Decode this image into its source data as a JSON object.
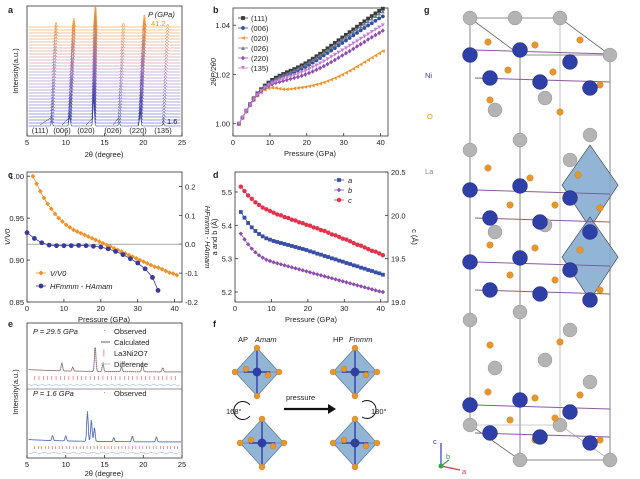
{
  "chart_data": [
    {
      "panel": "a",
      "type": "line",
      "ylabel": "Intensity(a.u.)",
      "xlabel": "2θ (degree)",
      "xlim": [
        5,
        25
      ],
      "xticks": [
        5,
        10,
        15,
        20,
        25
      ],
      "pressure_label": "P (GPa)",
      "top_pressure": "41.2",
      "bottom_pressure": "1.6",
      "peak_labels": [
        "(111)",
        "(006)",
        "(020)",
        "(026)",
        "(220)",
        "(135)"
      ],
      "peak_positions": [
        8.2,
        10.5,
        13.6,
        16.9,
        19.6,
        22.6
      ]
    },
    {
      "panel": "b",
      "type": "scatter",
      "ylabel": "2θP/2θ0",
      "xlabel": "Pressure (GPa)",
      "xlim": [
        0,
        42
      ],
      "ylim": [
        0.995,
        1.047
      ],
      "xticks": [
        0,
        10,
        20,
        30,
        40
      ],
      "yticks": [
        1.0,
        1.02,
        1.04
      ],
      "x": [
        1.6,
        2.6,
        3.6,
        4.6,
        5.6,
        6.6,
        7.6,
        8.6,
        9.6,
        10.6,
        11.6,
        12.6,
        13.6,
        14.6,
        15.6,
        16.6,
        17.6,
        18.6,
        19.6,
        20.6,
        21.6,
        22.6,
        23.6,
        24.6,
        25.6,
        26.6,
        27.6,
        28.6,
        29.6,
        30.6,
        31.6,
        32.6,
        33.6,
        34.6,
        35.6,
        36.6,
        37.6,
        38.6,
        39.6,
        40.6
      ],
      "series": [
        {
          "name": "(111)",
          "color": "#3a3a3a",
          "values": [
            1.0,
            1.0025,
            1.0053,
            1.0079,
            1.0103,
            1.0123,
            1.014,
            1.0155,
            1.0167,
            1.0178,
            1.0187,
            1.0195,
            1.0202,
            1.0209,
            1.0215,
            1.0222,
            1.0229,
            1.0237,
            1.0245,
            1.0254,
            1.0264,
            1.0274,
            1.0284,
            1.0295,
            1.0306,
            1.0317,
            1.0328,
            1.0339,
            1.035,
            1.0361,
            1.0372,
            1.0383,
            1.0394,
            1.0405,
            1.0416,
            1.0427,
            1.0437,
            1.0448,
            1.0458,
            1.0467
          ]
        },
        {
          "name": "(006)",
          "color": "#2f4fa0",
          "values": [
            1.0,
            1.0024,
            1.0051,
            1.0076,
            1.0099,
            1.0119,
            1.0135,
            1.0149,
            1.016,
            1.017,
            1.0178,
            1.0185,
            1.0192,
            1.0198,
            1.0204,
            1.021,
            1.0217,
            1.0224,
            1.0231,
            1.0239,
            1.0248,
            1.0257,
            1.0267,
            1.0277,
            1.0287,
            1.0297,
            1.0307,
            1.0318,
            1.0328,
            1.0338,
            1.0348,
            1.0359,
            1.0369,
            1.0379,
            1.0389,
            1.0399,
            1.0408,
            1.0418,
            1.0428,
            1.0436
          ]
        },
        {
          "name": "(020)",
          "color": "#f0922b",
          "values": [
            1.0,
            1.0024,
            1.005,
            1.0074,
            1.0096,
            1.0114,
            1.0128,
            1.0138,
            1.0144,
            1.0146,
            1.0145,
            1.0142,
            1.014,
            1.014,
            1.0141,
            1.0143,
            1.0145,
            1.0147,
            1.0149,
            1.0152,
            1.0155,
            1.0159,
            1.0163,
            1.0168,
            1.0173,
            1.0179,
            1.0185,
            1.0192,
            1.0199,
            1.0207,
            1.0215,
            1.0223,
            1.0232,
            1.0241,
            1.025,
            1.0259,
            1.0268,
            1.0277,
            1.0286,
            1.0295
          ]
        },
        {
          "name": "(026)",
          "color": "#6b7a8f",
          "values": [
            1.0,
            1.0025,
            1.0052,
            1.0078,
            1.0101,
            1.0121,
            1.0138,
            1.0152,
            1.0163,
            1.0173,
            1.0182,
            1.019,
            1.0197,
            1.0203,
            1.021,
            1.0217,
            1.0224,
            1.0232,
            1.024,
            1.0249,
            1.0258,
            1.0268,
            1.0278,
            1.0289,
            1.0299,
            1.031,
            1.032,
            1.0331,
            1.0342,
            1.0353,
            1.0363,
            1.0374,
            1.0385,
            1.0395,
            1.0406,
            1.0416,
            1.0427,
            1.0437,
            1.0447,
            1.0456
          ]
        },
        {
          "name": "(220)",
          "color": "#8e4bb0",
          "values": [
            1.0,
            1.0024,
            1.005,
            1.0075,
            1.0097,
            1.0116,
            1.0131,
            1.0143,
            1.0153,
            1.016,
            1.0166,
            1.017,
            1.0174,
            1.0178,
            1.0182,
            1.0186,
            1.019,
            1.0195,
            1.02,
            1.0206,
            1.0212,
            1.0219,
            1.0226,
            1.0234,
            1.0242,
            1.025,
            1.0259,
            1.0268,
            1.0277,
            1.0286,
            1.0295,
            1.0304,
            1.0314,
            1.0323,
            1.0332,
            1.0342,
            1.0351,
            1.036,
            1.0369,
            1.0378
          ]
        },
        {
          "name": "(135)",
          "color": "#c87ad2",
          "values": [
            1.0,
            1.0024,
            1.0051,
            1.0076,
            1.0099,
            1.0118,
            1.0133,
            1.0146,
            1.0156,
            1.0164,
            1.0171,
            1.0177,
            1.0182,
            1.0187,
            1.0192,
            1.0197,
            1.0203,
            1.0209,
            1.0215,
            1.0222,
            1.0229,
            1.0237,
            1.0245,
            1.0253,
            1.0262,
            1.0271,
            1.028,
            1.0289,
            1.0298,
            1.0307,
            1.0317,
            1.0326,
            1.0335,
            1.0345,
            1.0354,
            1.0363,
            1.0373,
            1.0382,
            1.0391,
            1.04
          ]
        }
      ]
    },
    {
      "panel": "c",
      "type": "scatter",
      "ylabel": "V/V0",
      "y2label": "HFmmm - HAmam",
      "xlabel": "Pressure (GPa)",
      "xlim": [
        0,
        42
      ],
      "ylim": [
        0.85,
        1.005
      ],
      "y2lim": [
        -0.2,
        0.25
      ],
      "xticks": [
        0,
        10,
        20,
        30,
        40
      ],
      "yticks": [
        0.85,
        0.9,
        0.95,
        1.0
      ],
      "y2ticks": [
        -0.2,
        -0.1,
        0.0,
        0.1,
        0.2
      ],
      "series": [
        {
          "name": "V/V0",
          "color": "#f0922b",
          "x": [
            1.6,
            2.6,
            3.6,
            4.6,
            5.6,
            6.6,
            7.6,
            8.6,
            9.6,
            10.6,
            11.6,
            12.6,
            13.6,
            14.6,
            15.6,
            16.6,
            17.6,
            18.6,
            19.6,
            20.6,
            21.6,
            22.6,
            23.6,
            24.6,
            25.6,
            26.6,
            27.6,
            28.6,
            29.6,
            30.6,
            31.6,
            32.6,
            33.6,
            34.6,
            35.6,
            36.6,
            37.6,
            38.6,
            39.6,
            40.6
          ],
          "values": [
            1.0,
            0.991,
            0.982,
            0.974,
            0.967,
            0.961,
            0.955,
            0.95,
            0.946,
            0.942,
            0.939,
            0.936,
            0.934,
            0.932,
            0.93,
            0.928,
            0.926,
            0.924,
            0.922,
            0.92,
            0.918,
            0.916,
            0.914,
            0.912,
            0.91,
            0.908,
            0.906,
            0.904,
            0.902,
            0.9,
            0.898,
            0.896,
            0.894,
            0.892,
            0.891,
            0.889,
            0.887,
            0.885,
            0.884,
            0.882
          ]
        },
        {
          "name": "HFmmm - HAmam",
          "color": "#3a3a9a",
          "axis": "right",
          "x": [
            0,
            2,
            4,
            6,
            8,
            10,
            12,
            14,
            16,
            18,
            20,
            22,
            24,
            26,
            28,
            30,
            32,
            34,
            35.5
          ],
          "values": [
            0.04,
            0.02,
            0.005,
            -0.003,
            -0.005,
            -0.005,
            -0.005,
            -0.004,
            -0.005,
            -0.007,
            -0.01,
            -0.016,
            -0.025,
            -0.036,
            -0.05,
            -0.065,
            -0.085,
            -0.115,
            -0.16
          ]
        }
      ]
    },
    {
      "panel": "d",
      "type": "scatter",
      "ylabel": "a and b (Å)",
      "y2label": "c (Å)",
      "xlabel": "Pressure (GPa)",
      "xlim": [
        0,
        42
      ],
      "ylim": [
        5.17,
        5.56
      ],
      "y2lim": [
        19.0,
        20.5
      ],
      "xticks": [
        0,
        10,
        20,
        30,
        40
      ],
      "yticks": [
        5.2,
        5.3,
        5.4,
        5.5
      ],
      "y2ticks": [
        19.0,
        19.5,
        20.0,
        20.5
      ],
      "x": [
        1.6,
        2.6,
        3.6,
        4.6,
        5.6,
        6.6,
        7.6,
        8.6,
        9.6,
        10.6,
        11.6,
        12.6,
        13.6,
        14.6,
        15.6,
        16.6,
        17.6,
        18.6,
        19.6,
        20.6,
        21.6,
        22.6,
        23.6,
        24.6,
        25.6,
        26.6,
        27.6,
        28.6,
        29.6,
        30.6,
        31.6,
        32.6,
        33.6,
        34.6,
        35.6,
        36.6,
        37.6,
        38.6,
        39.6,
        40.6
      ],
      "series": [
        {
          "name": "a",
          "color": "#3a4fa8",
          "values": [
            5.44,
            5.423,
            5.407,
            5.394,
            5.383,
            5.374,
            5.367,
            5.361,
            5.357,
            5.353,
            5.35,
            5.347,
            5.344,
            5.341,
            5.338,
            5.335,
            5.332,
            5.329,
            5.326,
            5.322,
            5.319,
            5.315,
            5.312,
            5.308,
            5.305,
            5.301,
            5.298,
            5.294,
            5.291,
            5.287,
            5.284,
            5.28,
            5.277,
            5.273,
            5.27,
            5.266,
            5.263,
            5.259,
            5.256,
            5.252
          ]
        },
        {
          "name": "b",
          "color": "#8e4bb0",
          "values": [
            5.375,
            5.358,
            5.343,
            5.33,
            5.319,
            5.31,
            5.303,
            5.297,
            5.293,
            5.289,
            5.286,
            5.283,
            5.28,
            5.277,
            5.274,
            5.271,
            5.268,
            5.265,
            5.262,
            5.259,
            5.256,
            5.253,
            5.25,
            5.247,
            5.244,
            5.241,
            5.238,
            5.235,
            5.232,
            5.229,
            5.226,
            5.223,
            5.22,
            5.217,
            5.214,
            5.211,
            5.208,
            5.205,
            5.202,
            5.2
          ]
        },
        {
          "name": "c",
          "color": "#e2334a",
          "axis": "right",
          "values": [
            20.33,
            20.28,
            20.23,
            20.19,
            20.15,
            20.12,
            20.09,
            20.07,
            20.05,
            20.03,
            20.01,
            20.0,
            19.98,
            19.97,
            19.95,
            19.94,
            19.92,
            19.91,
            19.89,
            19.88,
            19.86,
            19.85,
            19.83,
            19.82,
            19.8,
            19.78,
            19.77,
            19.75,
            19.73,
            19.72,
            19.7,
            19.68,
            19.66,
            19.65,
            19.63,
            19.61,
            19.59,
            19.58,
            19.56,
            19.54
          ]
        }
      ]
    },
    {
      "panel": "e",
      "type": "line",
      "ylabel": "Intensity(a.u.)",
      "xlabel": "2θ (degree)",
      "xlim": [
        5,
        25
      ],
      "xticks": [
        5,
        10,
        15,
        20,
        25
      ],
      "top_label": "P = 29.5 GPa",
      "bottom_label": "P = 1.6 GPa",
      "legend": [
        "Observed",
        "Calculated",
        "La3Ni2O7",
        "Difference"
      ],
      "bottom_legend": "Observed"
    }
  ],
  "panel_labels": [
    "a",
    "b",
    "c",
    "d",
    "e",
    "f",
    "g"
  ],
  "panel_f": {
    "left_label": "AP",
    "left_phase": "Amam",
    "right_label": "HP",
    "right_phase": "Fmmm",
    "arrow_label": "pressure",
    "left_angle": "168°",
    "right_angle": "180°"
  },
  "panel_g": {
    "atom_labels": [
      "Ni",
      "O",
      "La"
    ],
    "axis_labels": [
      "c",
      "b",
      "a"
    ],
    "colors": {
      "Ni": "#2f3fa8",
      "O": "#e8962a",
      "La": "#b4b4b4",
      "octahedron": "#7fa8cf"
    }
  }
}
